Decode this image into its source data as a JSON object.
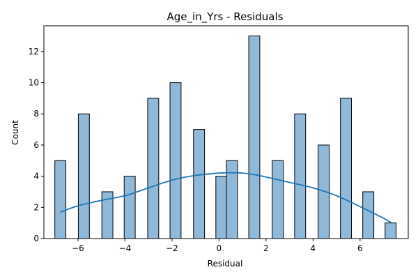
{
  "chart_data": {
    "type": "bar",
    "title": "Age_in_Yrs - Residuals",
    "xlabel": "Residual",
    "ylabel": "Count",
    "xlim": [
      -7.45,
      8.05
    ],
    "ylim": [
      0,
      13.65
    ],
    "x_ticks": [
      -6,
      -4,
      -2,
      0,
      2,
      4,
      6
    ],
    "x_tick_labels": [
      "−6",
      "−4",
      "−2",
      "0",
      "2",
      "4",
      "6"
    ],
    "y_ticks": [
      0,
      2,
      4,
      6,
      8,
      10,
      12
    ],
    "y_tick_labels": [
      "0",
      "2",
      "4",
      "6",
      "8",
      "10",
      "12"
    ],
    "grid": false,
    "bin_width": 0.47,
    "bins": [
      {
        "x": -6.75,
        "count": 5
      },
      {
        "x": -5.75,
        "count": 8
      },
      {
        "x": -4.75,
        "count": 3
      },
      {
        "x": -3.8,
        "count": 4
      },
      {
        "x": -2.8,
        "count": 9
      },
      {
        "x": -1.85,
        "count": 10
      },
      {
        "x": -0.85,
        "count": 7
      },
      {
        "x": 0.1,
        "count": 4
      },
      {
        "x": 0.55,
        "count": 5
      },
      {
        "x": 1.5,
        "count": 13
      },
      {
        "x": 2.5,
        "count": 5
      },
      {
        "x": 3.45,
        "count": 8
      },
      {
        "x": 4.45,
        "count": 6
      },
      {
        "x": 5.4,
        "count": 9
      },
      {
        "x": 6.35,
        "count": 3
      },
      {
        "x": 7.3,
        "count": 1
      }
    ],
    "kde": {
      "x": [
        -6.75,
        -6,
        -5,
        -4,
        -3,
        -2,
        -1,
        0,
        0.5,
        1,
        1.5,
        2,
        3,
        4,
        5,
        6,
        7,
        7.35
      ],
      "y": [
        1.7,
        2.1,
        2.45,
        2.75,
        3.25,
        3.75,
        4.05,
        4.2,
        4.22,
        4.2,
        4.1,
        3.95,
        3.6,
        3.25,
        2.75,
        2.05,
        1.3,
        1.0
      ]
    },
    "colors": {
      "bar_fill": "#8fb8d9",
      "bar_edge": "#000000",
      "kde_line": "#1f77b4"
    }
  }
}
